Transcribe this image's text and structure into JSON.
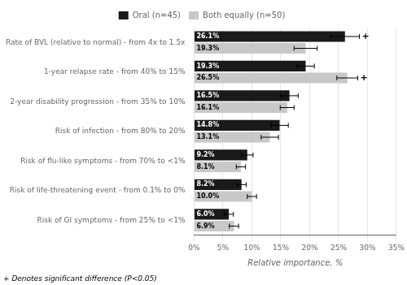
{
  "chart_data": {
    "type": "bar",
    "orientation": "horizontal",
    "categories": [
      "Rate of BVL (relative to normal) - from 4x to 1.5x",
      "1-year relapse rate - from 40% to 15%",
      "2-year disability progression - from 35% to 10%",
      "Risk of infection - from 80% to 20%",
      "Risk of flu-like symptoms - from 70% to <1%",
      "Risk of life-threatening event - from 0.1% to 0%",
      "Risk of GI symptoms - from 25% to <1%"
    ],
    "series": [
      {
        "name": "Oral (n=45)",
        "color": "#1a1a1a",
        "values": [
          26.1,
          19.3,
          16.5,
          14.8,
          9.2,
          8.2,
          6.0
        ],
        "value_labels": [
          "26.1%",
          "19.3%",
          "16.5%",
          "14.8%",
          "9.2%",
          "8.2%",
          "6.0%"
        ],
        "error_low": [
          2.5,
          1.5,
          1.5,
          1.5,
          1.0,
          0.8,
          0.8
        ],
        "error_high": [
          2.5,
          1.5,
          1.5,
          1.5,
          1.0,
          0.8,
          0.8
        ],
        "significant": [
          true,
          false,
          false,
          false,
          false,
          false,
          false
        ]
      },
      {
        "name": "Both equally (n=50)",
        "color": "#c8c8c8",
        "values": [
          19.3,
          26.5,
          16.1,
          13.1,
          8.1,
          10.0,
          6.9
        ],
        "value_labels": [
          "19.3%",
          "26.5%",
          "16.1%",
          "13.1%",
          "8.1%",
          "10.0%",
          "6.9%"
        ],
        "error_low": [
          2.0,
          1.8,
          1.2,
          1.5,
          0.8,
          0.8,
          0.8
        ],
        "error_high": [
          2.0,
          1.8,
          1.2,
          1.5,
          0.8,
          0.8,
          0.8
        ],
        "significant": [
          false,
          true,
          false,
          false,
          false,
          false,
          false
        ]
      }
    ],
    "xlabel": "Relative importance, %",
    "xlim": [
      0,
      35
    ],
    "xticks": [
      {
        "value": 0,
        "label": "0%"
      },
      {
        "value": 5,
        "label": "5%"
      },
      {
        "value": 10,
        "label": "10%"
      },
      {
        "value": 15,
        "label": "15%"
      },
      {
        "value": 20,
        "label": "20%"
      },
      {
        "value": 25,
        "label": "25%"
      },
      {
        "value": 30,
        "label": "30%"
      },
      {
        "value": 35,
        "label": "35%"
      }
    ],
    "grid": true,
    "legend": "top",
    "data_labels": true,
    "sig_marker": "+",
    "footnote": "+ Denotes significant difference (P<0.05)"
  }
}
